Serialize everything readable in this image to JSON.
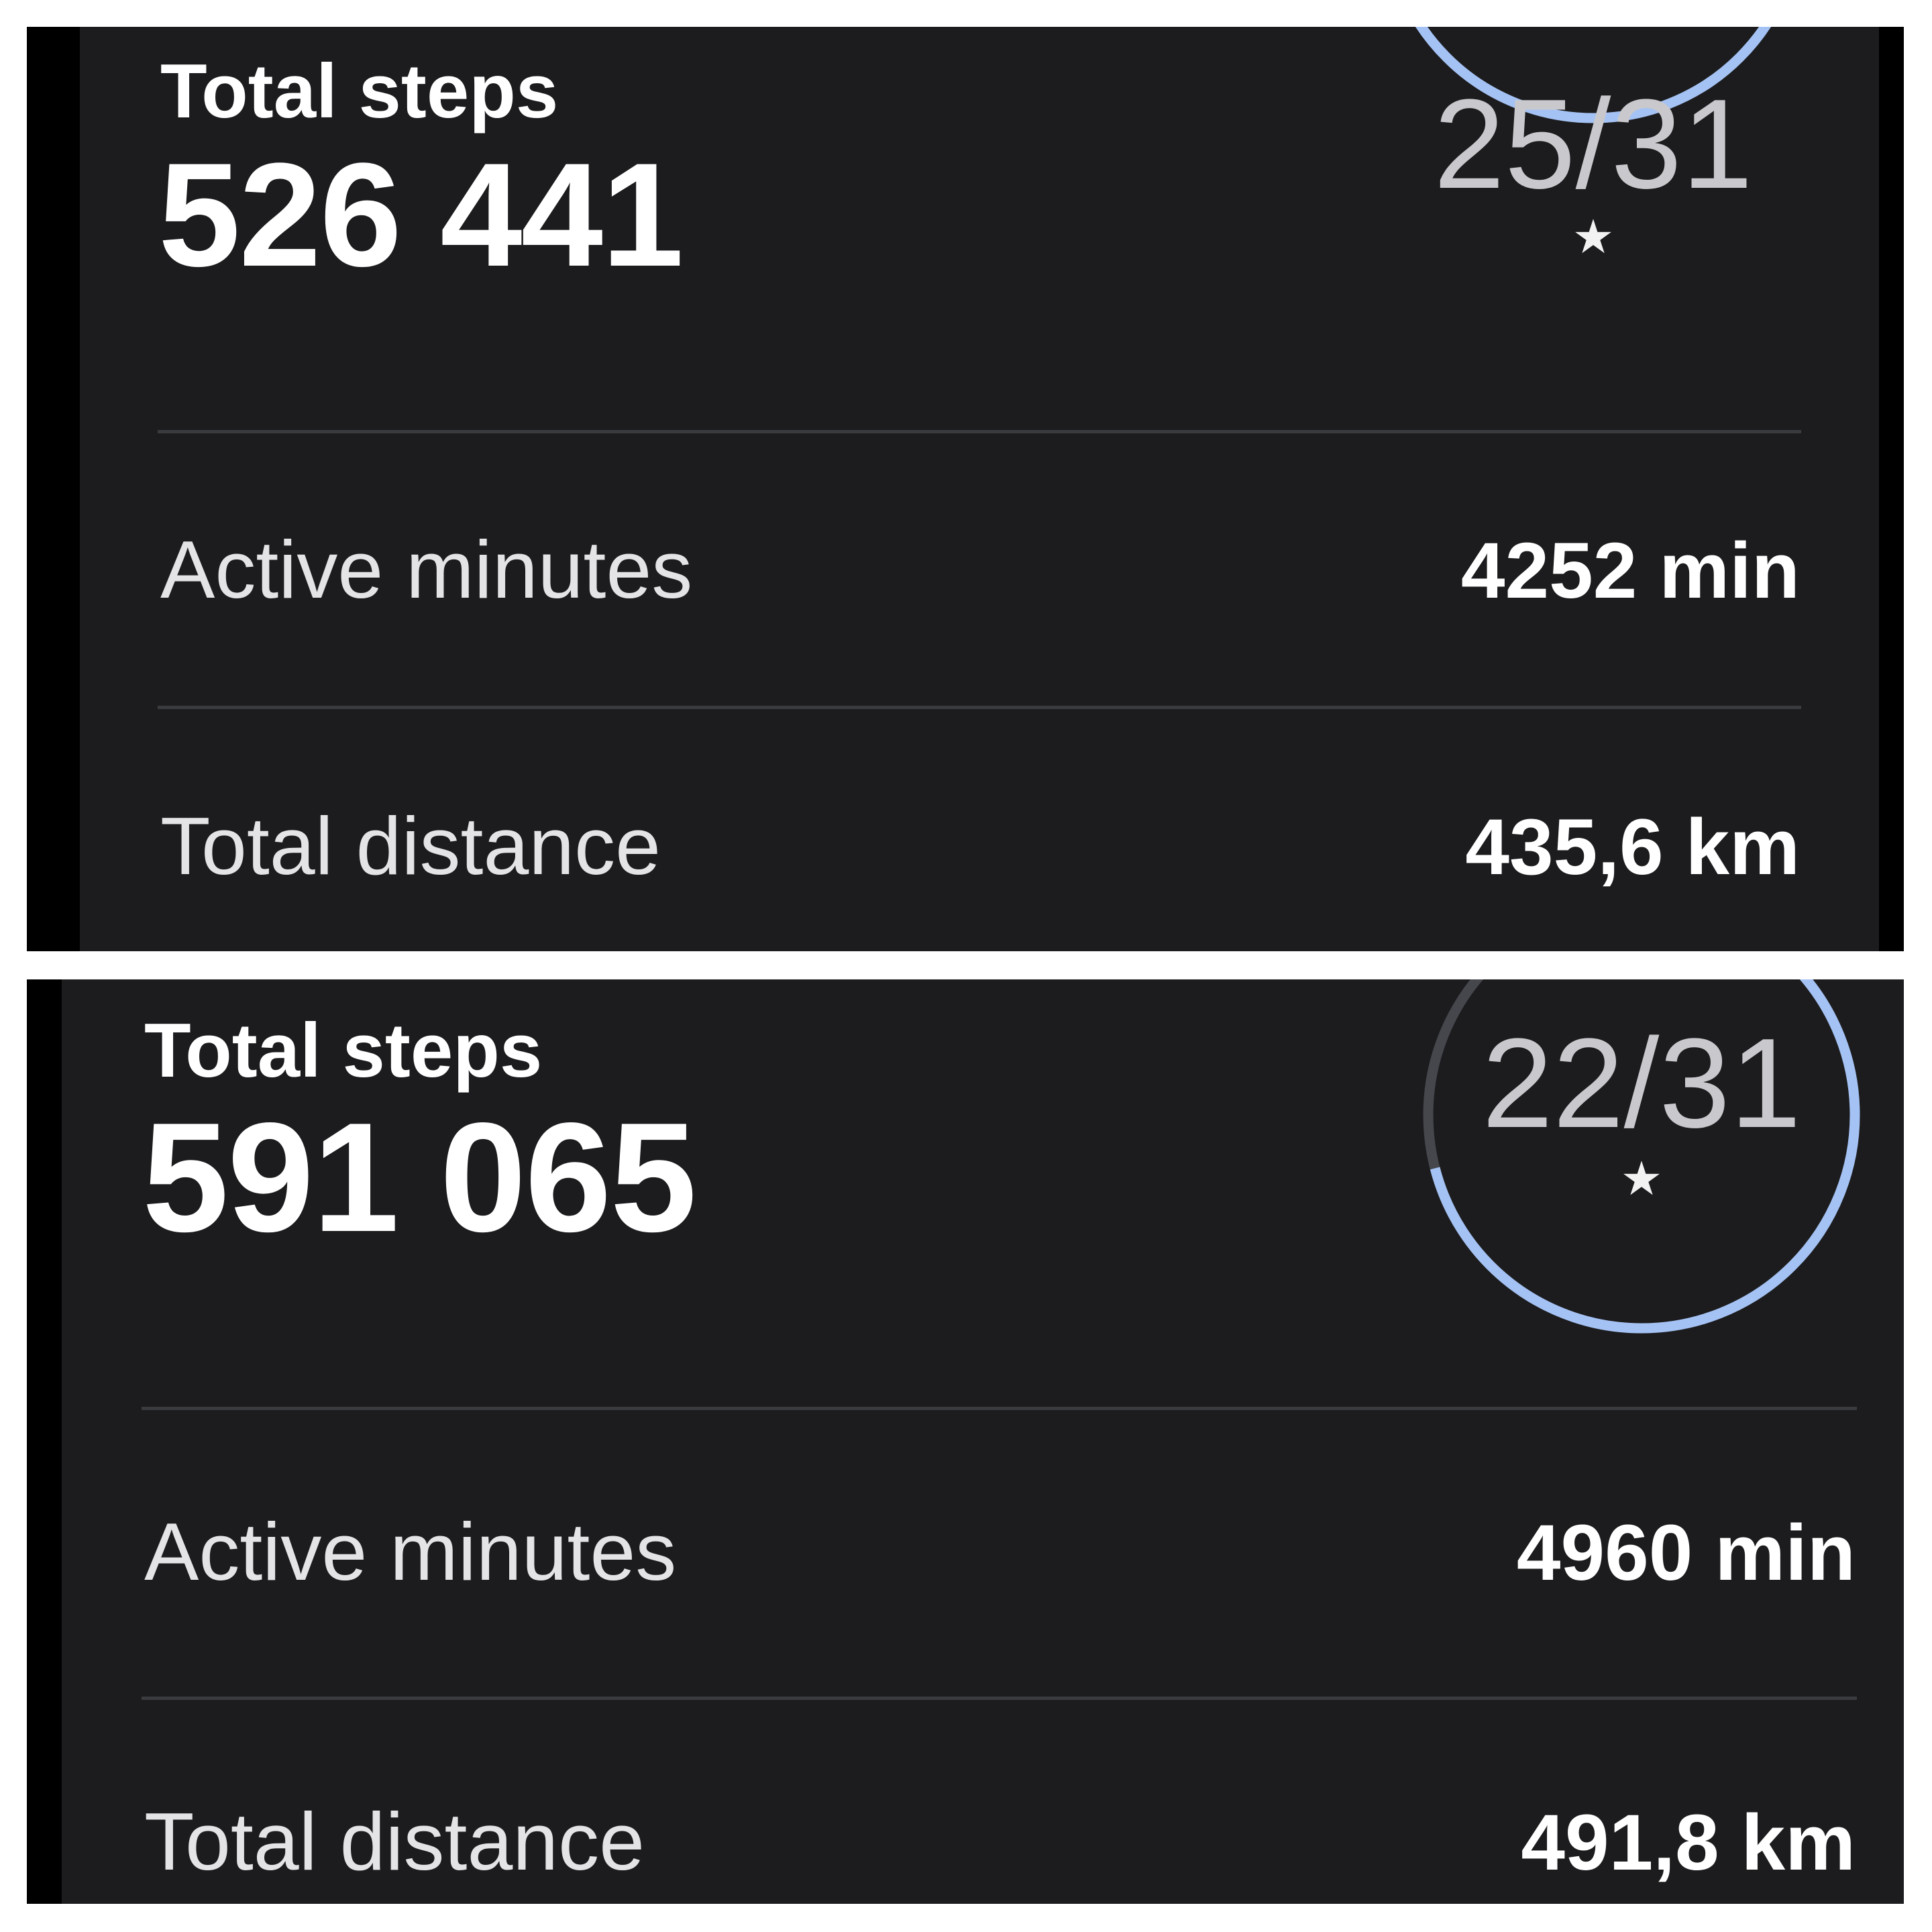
{
  "colors": {
    "background": "#1c1c1e",
    "ring_progress": "#a4c2f4",
    "ring_track": "#45474d",
    "divider": "#3a3b3f"
  },
  "cards": [
    {
      "steps_label": "Total steps",
      "steps_value": "526 441",
      "goal_days": "25/31",
      "goal_done": 25,
      "goal_total": 31,
      "star_icon": "star-icon",
      "rows": [
        {
          "label": "Active minutes",
          "value": "4252 min"
        },
        {
          "label": "Total distance",
          "value": "435,6 km"
        }
      ]
    },
    {
      "steps_label": "Total steps",
      "steps_value": "591 065",
      "goal_days": "22/31",
      "goal_done": 22,
      "goal_total": 31,
      "star_icon": "star-icon",
      "rows": [
        {
          "label": "Active minutes",
          "value": "4960 min"
        },
        {
          "label": "Total distance",
          "value": "491,8 km"
        }
      ]
    }
  ]
}
